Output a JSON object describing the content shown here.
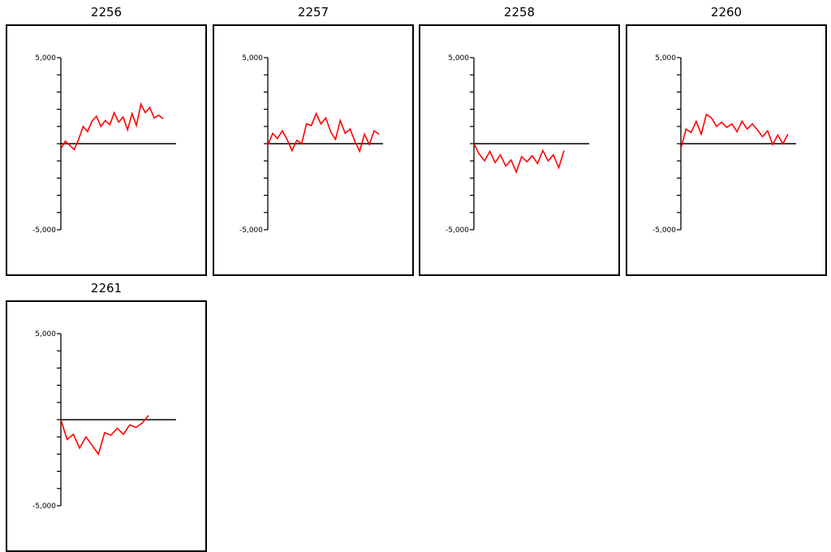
{
  "chart_data": [
    {
      "type": "line",
      "title": "2256",
      "ylim": [
        -5000,
        5000
      ],
      "y_tick_labels": [
        "5,000",
        "-5,000"
      ],
      "baseline": 0,
      "series": [
        {
          "color": "#ff0000",
          "values": [
            -300,
            150,
            -100,
            -350,
            250,
            1000,
            700,
            1300,
            1600,
            1000,
            1350,
            1100,
            1800,
            1250,
            1550,
            800,
            1750,
            1050,
            2300,
            1800,
            2100,
            1500,
            1650,
            1450
          ]
        }
      ]
    },
    {
      "type": "line",
      "title": "2257",
      "ylim": [
        -5000,
        5000
      ],
      "y_tick_labels": [
        "5,000",
        "-5,000"
      ],
      "baseline": 0,
      "series": [
        {
          "color": "#ff0000",
          "values": [
            -100,
            600,
            300,
            750,
            250,
            -400,
            200,
            0,
            1150,
            1050,
            1750,
            1150,
            1500,
            700,
            250,
            1350,
            600,
            850,
            150,
            -450,
            550,
            -50,
            750,
            550
          ]
        }
      ]
    },
    {
      "type": "line",
      "title": "2258",
      "ylim": [
        -5000,
        5000
      ],
      "y_tick_labels": [
        "5,000",
        "-5,000"
      ],
      "baseline": 0,
      "series": [
        {
          "color": "#ff0000",
          "values": [
            0,
            -600,
            -1000,
            -450,
            -1100,
            -650,
            -1300,
            -950,
            -1650,
            -750,
            -1050,
            -700,
            -1150,
            -400,
            -1000,
            -650,
            -1400,
            -400
          ]
        }
      ]
    },
    {
      "type": "line",
      "title": "2260",
      "ylim": [
        -5000,
        5000
      ],
      "y_tick_labels": [
        "5,000",
        "-5,000"
      ],
      "baseline": 0,
      "series": [
        {
          "color": "#ff0000",
          "values": [
            -300,
            850,
            650,
            1300,
            550,
            1700,
            1500,
            1000,
            1250,
            950,
            1150,
            700,
            1300,
            850,
            1150,
            800,
            400,
            750,
            -50,
            500,
            0,
            550
          ]
        }
      ]
    },
    {
      "type": "line",
      "title": "2261",
      "ylim": [
        -5000,
        5000
      ],
      "y_tick_labels": [
        "5,000",
        "-5,000"
      ],
      "baseline": 0,
      "series": [
        {
          "color": "#ff0000",
          "values": [
            0,
            -1150,
            -850,
            -1650,
            -1000,
            -1500,
            -2000,
            -750,
            -900,
            -500,
            -850,
            -300,
            -450,
            -200,
            250
          ]
        }
      ]
    }
  ]
}
